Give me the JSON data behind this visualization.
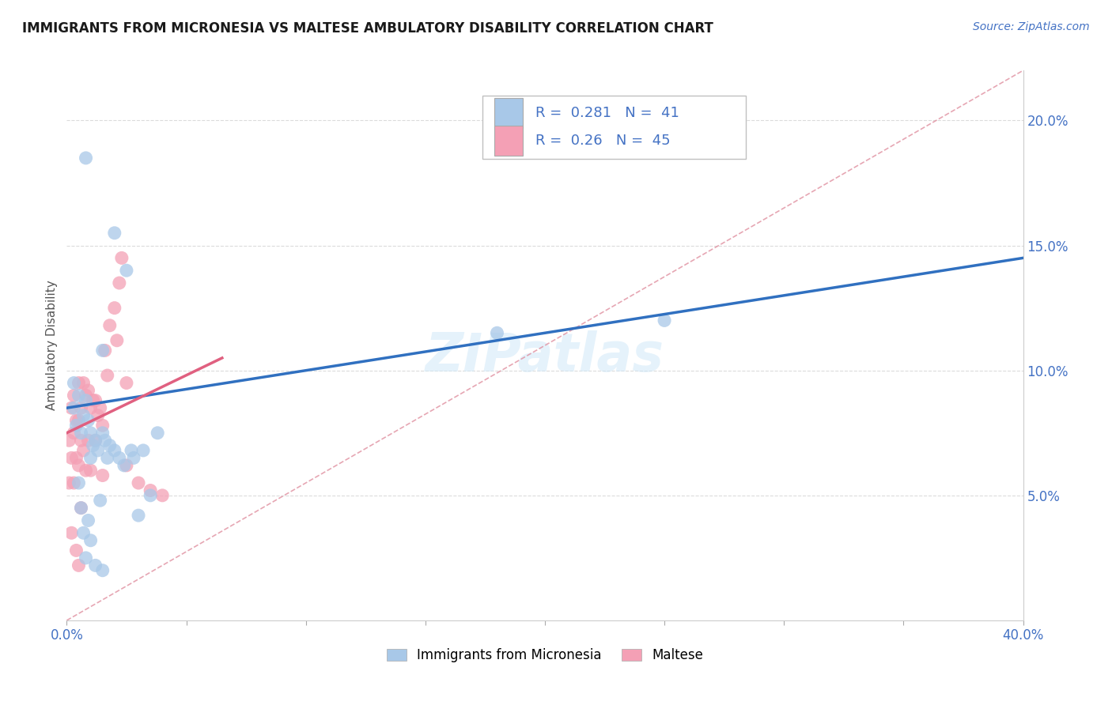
{
  "title": "IMMIGRANTS FROM MICRONESIA VS MALTESE AMBULATORY DISABILITY CORRELATION CHART",
  "source": "Source: ZipAtlas.com",
  "ylabel": "Ambulatory Disability",
  "xlim": [
    0.0,
    0.4
  ],
  "ylim": [
    0.0,
    0.22
  ],
  "blue_R": 0.281,
  "blue_N": 41,
  "pink_R": 0.26,
  "pink_N": 45,
  "blue_color": "#a8c8e8",
  "pink_color": "#f4a0b5",
  "blue_line_color": "#3070c0",
  "pink_line_color": "#e06080",
  "ref_line_color": "#e090a0",
  "watermark": "ZIPatlas",
  "legend_blue": "Immigrants from Micronesia",
  "legend_pink": "Maltese",
  "blue_scatter_x": [
    0.003,
    0.003,
    0.004,
    0.005,
    0.005,
    0.006,
    0.006,
    0.007,
    0.007,
    0.008,
    0.008,
    0.009,
    0.009,
    0.01,
    0.01,
    0.011,
    0.012,
    0.012,
    0.013,
    0.014,
    0.015,
    0.015,
    0.016,
    0.017,
    0.018,
    0.02,
    0.022,
    0.024,
    0.027,
    0.028,
    0.032,
    0.035,
    0.038,
    0.18,
    0.25,
    0.03,
    0.025,
    0.02,
    0.015,
    0.01,
    0.008
  ],
  "blue_scatter_y": [
    0.095,
    0.085,
    0.078,
    0.09,
    0.055,
    0.075,
    0.045,
    0.082,
    0.035,
    0.088,
    0.025,
    0.08,
    0.04,
    0.075,
    0.032,
    0.07,
    0.072,
    0.022,
    0.068,
    0.048,
    0.075,
    0.02,
    0.072,
    0.065,
    0.07,
    0.068,
    0.065,
    0.062,
    0.068,
    0.065,
    0.068,
    0.05,
    0.075,
    0.115,
    0.12,
    0.042,
    0.14,
    0.155,
    0.108,
    0.065,
    0.185
  ],
  "pink_scatter_x": [
    0.001,
    0.001,
    0.002,
    0.002,
    0.002,
    0.003,
    0.003,
    0.003,
    0.004,
    0.004,
    0.004,
    0.005,
    0.005,
    0.005,
    0.005,
    0.006,
    0.006,
    0.006,
    0.007,
    0.007,
    0.008,
    0.008,
    0.009,
    0.009,
    0.01,
    0.01,
    0.011,
    0.012,
    0.012,
    0.013,
    0.014,
    0.015,
    0.015,
    0.016,
    0.017,
    0.018,
    0.02,
    0.021,
    0.022,
    0.023,
    0.025,
    0.025,
    0.03,
    0.035,
    0.04
  ],
  "pink_scatter_y": [
    0.072,
    0.055,
    0.085,
    0.065,
    0.035,
    0.09,
    0.075,
    0.055,
    0.08,
    0.065,
    0.028,
    0.095,
    0.08,
    0.062,
    0.022,
    0.085,
    0.072,
    0.045,
    0.095,
    0.068,
    0.09,
    0.06,
    0.092,
    0.072,
    0.085,
    0.06,
    0.088,
    0.088,
    0.072,
    0.082,
    0.085,
    0.078,
    0.058,
    0.108,
    0.098,
    0.118,
    0.125,
    0.112,
    0.135,
    0.145,
    0.095,
    0.062,
    0.055,
    0.052,
    0.05
  ],
  "background_color": "#ffffff",
  "grid_color": "#cccccc",
  "blue_line_x": [
    0.0,
    0.4
  ],
  "blue_line_y": [
    0.085,
    0.145
  ],
  "pink_line_x": [
    0.0,
    0.065
  ],
  "pink_line_y": [
    0.075,
    0.105
  ]
}
